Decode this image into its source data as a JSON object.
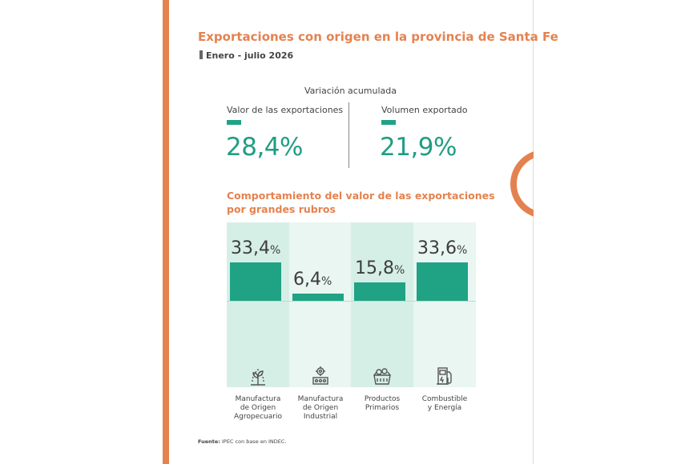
{
  "header": {
    "title": "Exportaciones con origen en la provincia de Santa Fe",
    "period": "Enero - julio 2026"
  },
  "kpis": {
    "title": "Variación acumulada",
    "items": [
      {
        "label": "Valor de las exportaciones",
        "value": "28,4%"
      },
      {
        "label": "Volumen exportado",
        "value": "21,9%"
      }
    ]
  },
  "colors": {
    "accent_orange": "#e4824f",
    "accent_green": "#1fa384",
    "panel_green": "#d6efe6",
    "panel_light": "#e9f6f2"
  },
  "chart_data": {
    "type": "bar",
    "title": "Comportamiento del valor de las exportaciones por grandes rubros",
    "title_lines": [
      "Comportamiento del valor de las exportaciones",
      "por grandes rubros"
    ],
    "categories": [
      [
        "Manufactura",
        "de Origen",
        "Agropecuario"
      ],
      [
        "Manufactura",
        "de Origen",
        "Industrial"
      ],
      [
        "Productos",
        "Primarios"
      ],
      [
        "Combustible",
        "y Energía"
      ]
    ],
    "values": [
      33.4,
      6.4,
      15.8,
      33.6
    ],
    "value_labels": [
      "33,4",
      "6,4",
      "15,8",
      "33,6"
    ],
    "unit": "%",
    "icons": [
      "agro-plant-icon",
      "industry-gears-icon",
      "produce-basket-icon",
      "fuel-pump-icon"
    ],
    "ylim": [
      0,
      40
    ],
    "grid": false,
    "legend": "none"
  },
  "footer": {
    "source_label": "Fuente:",
    "source_text": "IPEC con base en INDEC."
  }
}
